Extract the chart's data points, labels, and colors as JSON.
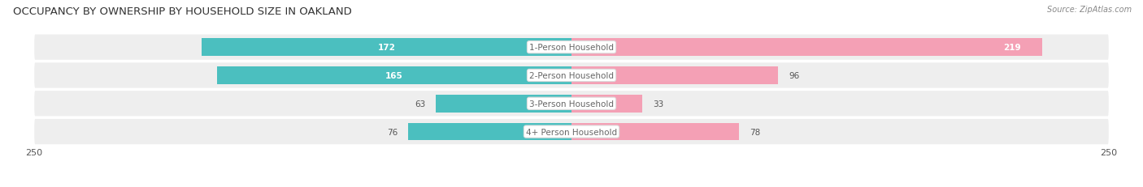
{
  "title": "OCCUPANCY BY OWNERSHIP BY HOUSEHOLD SIZE IN OAKLAND",
  "source": "Source: ZipAtlas.com",
  "categories": [
    "1-Person Household",
    "2-Person Household",
    "3-Person Household",
    "4+ Person Household"
  ],
  "owner_values": [
    172,
    165,
    63,
    76
  ],
  "renter_values": [
    219,
    96,
    33,
    78
  ],
  "max_val": 250,
  "owner_color": "#4bbfbf",
  "renter_color": "#f4a0b5",
  "row_bg_even": "#f0f0f0",
  "row_bg_odd": "#e8e8e8",
  "title_fontsize": 9.5,
  "source_fontsize": 7,
  "tick_fontsize": 8,
  "label_fontsize": 7.5,
  "bar_height": 0.62,
  "figsize": [
    14.06,
    2.32
  ],
  "dpi": 100
}
